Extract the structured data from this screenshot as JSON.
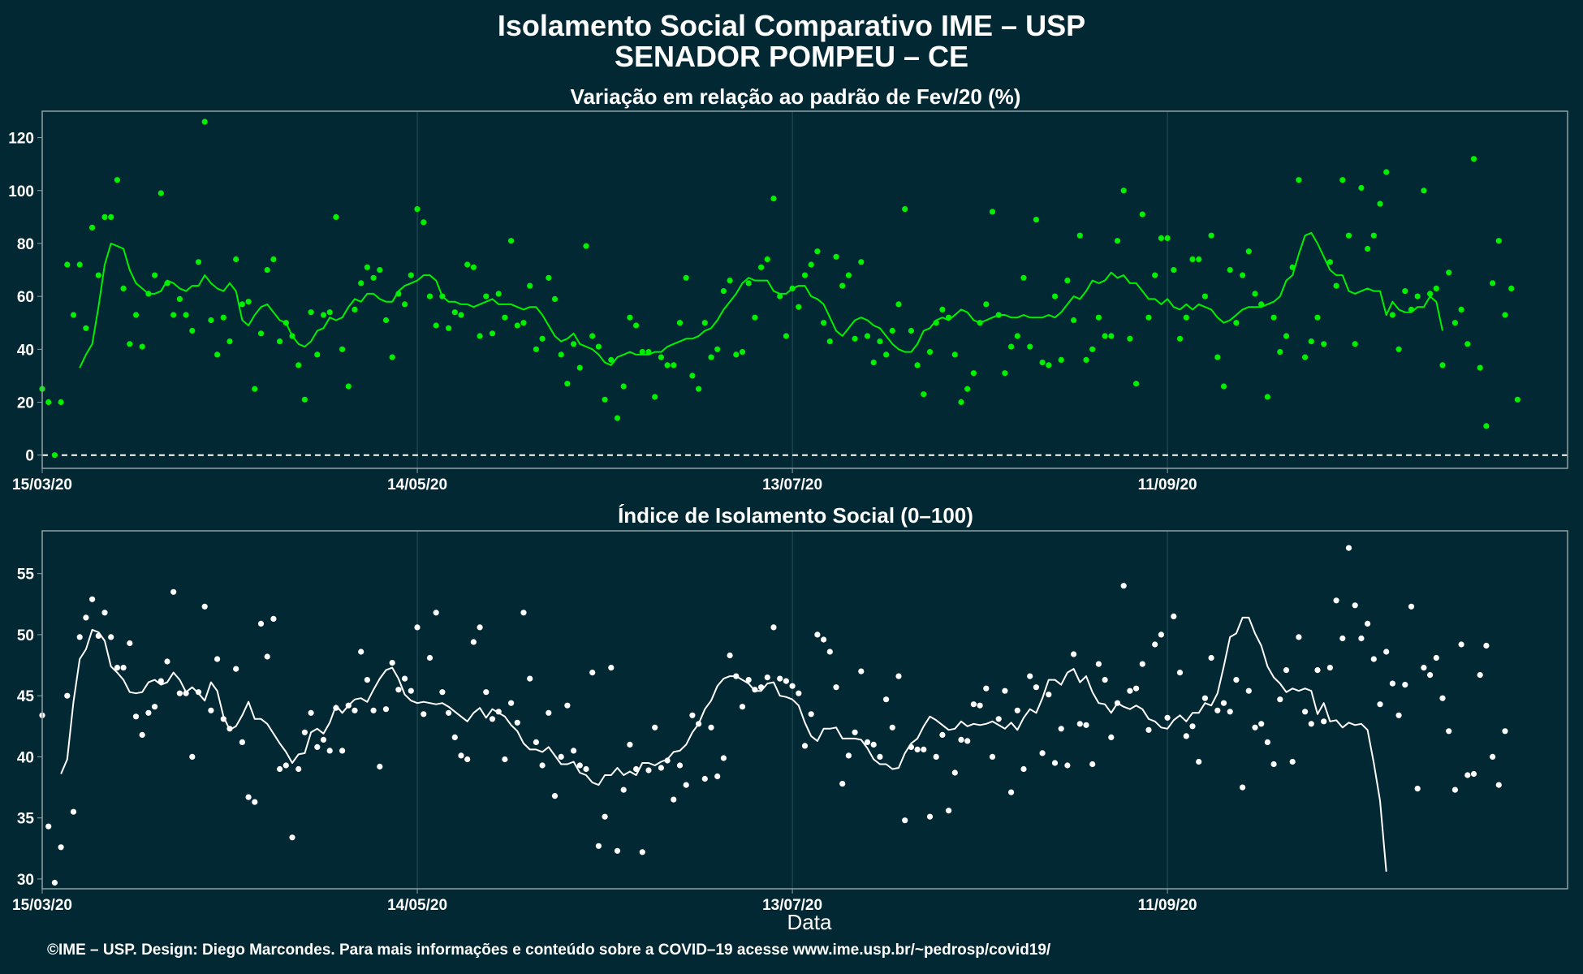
{
  "title": "Isolamento Social Comparativo IME – USP",
  "subtitle": "SENADOR POMPEU – CE",
  "xlabel": "Data",
  "footer": "©IME – USP. Design: Diego Marcondes. Para mais informações e conteúdo sobre a COVID–19 acesse www.ime.usp.br/~pedrosp/covid19/",
  "colors": {
    "background": "#022833",
    "panel_border": "#8ea1a6",
    "grid": "#1f4a55",
    "variation": "#00f000",
    "index": "#ffffff"
  },
  "chart_data": [
    {
      "type": "scatter",
      "title": "Variação em relação ao padrão de Fev/20 (%)",
      "xaxis": {
        "start": "2020-03-15",
        "end": "2020-11-14",
        "ticks": [
          "15/03/20",
          "14/05/20",
          "13/07/20",
          "11/09/20"
        ]
      },
      "ylim": [
        -5,
        130
      ],
      "yticks": [
        0,
        20,
        40,
        60,
        80,
        100,
        120
      ],
      "reference_line": 0,
      "series": [
        {
          "type": "scatter",
          "values": [
            25,
            20,
            0,
            20,
            72,
            53,
            72,
            48,
            86,
            68,
            90,
            90,
            104,
            63,
            42,
            53,
            41,
            61,
            68,
            99,
            65,
            53,
            59,
            53,
            47,
            73,
            126,
            51,
            38,
            52,
            43,
            74,
            57,
            58,
            25,
            46,
            70,
            74,
            43,
            50,
            45,
            34,
            21,
            54,
            38,
            53,
            54,
            90,
            40,
            26,
            55,
            65,
            71,
            67,
            70,
            51,
            37,
            61,
            57,
            68,
            93,
            88,
            60,
            49,
            60,
            48,
            54,
            53,
            72,
            71,
            45,
            60,
            46,
            61,
            52,
            81,
            49,
            50,
            64,
            40,
            44,
            67,
            59,
            38,
            27,
            42,
            33,
            79,
            45,
            41,
            21,
            36,
            14,
            26,
            52,
            49,
            39,
            39,
            22,
            37,
            34,
            34,
            50,
            67,
            30,
            25,
            50,
            37,
            40,
            62,
            66,
            38,
            39,
            65,
            52,
            71,
            74,
            97,
            60,
            45,
            63,
            56,
            68,
            72,
            77,
            50,
            43,
            75,
            64,
            68,
            44,
            73,
            45,
            35,
            43,
            38,
            47,
            57,
            93,
            47,
            34,
            23,
            39,
            50,
            55,
            52,
            38,
            20,
            25,
            31,
            50,
            57,
            92,
            53,
            31,
            41,
            45,
            67,
            41,
            89,
            35,
            34,
            60,
            36,
            66,
            51,
            83,
            36,
            40,
            52,
            45,
            45,
            81,
            100,
            44,
            27,
            91,
            52,
            68,
            82,
            82,
            70,
            44,
            52,
            74,
            74,
            60,
            83,
            37,
            26,
            70,
            50,
            68,
            77,
            61,
            57,
            22,
            52,
            39,
            45,
            71,
            104,
            37,
            43,
            52,
            42,
            73,
            64,
            104,
            83,
            42,
            101,
            78,
            83,
            95,
            107,
            53,
            40,
            62,
            55,
            60,
            100,
            61,
            63,
            34,
            69,
            50,
            55,
            42,
            112,
            33,
            11,
            65,
            81,
            53,
            63,
            21
          ]
        },
        {
          "type": "line",
          "values": [
            null,
            null,
            null,
            null,
            null,
            null,
            33,
            38,
            42,
            56,
            72,
            80,
            79,
            78,
            70,
            65,
            63,
            61,
            61,
            62,
            66,
            65,
            63,
            62,
            64,
            64,
            68,
            65,
            63,
            62,
            65,
            62,
            51,
            49,
            53,
            56,
            57,
            54,
            51,
            50,
            45,
            42,
            41,
            43,
            47,
            48,
            52,
            51,
            52,
            56,
            59,
            58,
            61,
            61,
            59,
            58,
            58,
            62,
            64,
            65,
            66,
            68,
            68,
            66,
            60,
            58,
            58,
            57,
            57,
            56,
            57,
            58,
            59,
            57,
            57,
            57,
            56,
            55,
            56,
            56,
            53,
            49,
            45,
            43,
            44,
            46,
            42,
            41,
            40,
            38,
            35,
            34,
            37,
            38,
            39,
            38,
            38,
            38,
            39,
            39,
            41,
            42,
            43,
            44,
            44,
            45,
            47,
            48,
            51,
            55,
            58,
            61,
            65,
            67,
            66,
            66,
            66,
            62,
            61,
            61,
            63,
            64,
            64,
            60,
            59,
            57,
            52,
            47,
            45,
            48,
            51,
            52,
            51,
            49,
            48,
            45,
            42,
            40,
            39,
            39,
            42,
            47,
            48,
            51,
            52,
            51,
            53,
            55,
            54,
            51,
            50,
            51,
            52,
            53,
            53,
            52,
            52,
            53,
            52,
            52,
            52,
            53,
            52,
            54,
            57,
            60,
            59,
            62,
            66,
            65,
            66,
            69,
            67,
            68,
            65,
            65,
            62,
            59,
            59,
            57,
            59,
            56,
            55,
            57,
            55,
            57,
            56,
            55,
            52,
            50,
            51,
            53,
            55,
            56,
            56,
            56,
            57,
            58,
            60,
            66,
            68,
            76,
            83,
            84,
            80,
            75,
            70,
            68,
            68,
            62,
            61,
            62,
            63,
            62,
            62,
            53,
            58,
            55,
            54,
            54,
            56,
            56,
            60,
            58,
            47
          ]
        }
      ]
    },
    {
      "type": "scatter",
      "title": "Índice de Isolamento Social (0–100)",
      "xaxis": {
        "start": "2020-03-15",
        "end": "2020-11-14",
        "ticks": [
          "15/03/20",
          "14/05/20",
          "13/07/20",
          "11/09/20"
        ]
      },
      "ylim": [
        29.2,
        58.5
      ],
      "yticks": [
        30,
        35,
        40,
        45,
        50,
        55
      ],
      "series": [
        {
          "type": "scatter",
          "values": [
            43.4,
            34.3,
            29.7,
            32.6,
            45,
            35.5,
            49.8,
            51.4,
            52.9,
            49.9,
            51.8,
            49.8,
            47.3,
            47.3,
            49.3,
            43.3,
            41.8,
            43.6,
            44.1,
            46.2,
            47.8,
            53.5,
            45.2,
            45.2,
            40,
            45.3,
            52.3,
            43.8,
            48,
            43.1,
            42.3,
            47.2,
            41.2,
            36.7,
            36.3,
            50.9,
            48.2,
            51.3,
            39,
            39.3,
            33.4,
            39,
            42,
            43.6,
            40.8,
            41.4,
            40.5,
            44,
            40.5,
            44.2,
            43.8,
            48.6,
            46.3,
            43.8,
            39.2,
            43.9,
            47.7,
            45.5,
            46.4,
            45.4,
            50.6,
            43.5,
            48.1,
            51.8,
            45.3,
            43.6,
            41.6,
            40.1,
            39.8,
            49.4,
            50.6,
            45.3,
            43.1,
            43.7,
            39.8,
            44.4,
            42.8,
            51.8,
            46.4,
            41.2,
            39.3,
            43.6,
            36.8,
            40,
            44.2,
            40.5,
            39.3,
            39,
            46.9,
            32.7,
            35.1,
            47.3,
            32.3,
            37.3,
            41,
            39,
            32.2,
            38.9,
            42.4,
            39.1,
            39.7,
            36.5,
            39.3,
            37.7,
            43.4,
            42.7,
            38.2,
            42.4,
            38.4,
            39.9,
            48.3,
            46.6,
            44.1,
            46.3,
            45.5,
            45.7,
            46.5,
            50.6,
            46.4,
            46.2,
            45.8,
            45.2,
            40.9,
            43.5,
            50,
            49.6,
            48.6,
            45.7,
            37.8,
            40.1,
            42,
            47,
            41.2,
            41,
            40,
            44.7,
            42.4,
            46.6,
            34.8,
            40.8,
            40.6,
            40.6,
            35.1,
            40,
            41.8,
            35.6,
            38.7,
            41.4,
            41.3,
            44.3,
            44.2,
            45.6,
            40,
            43.1,
            45.4,
            37.1,
            43.8,
            39,
            46.6,
            45.7,
            40.3,
            45.1,
            39.5,
            42.3,
            39.3,
            48.4,
            42.7,
            42.6,
            39.4,
            47.6,
            46.3,
            41.6,
            44.4,
            54,
            45.4,
            45.6,
            47.6,
            42.2,
            49.2,
            50,
            43.2,
            51.5,
            46.9,
            41.7,
            42.5,
            39.6,
            44.8,
            48.1,
            43.8,
            44.4,
            43.7,
            46.3,
            37.5,
            45.4,
            42.4,
            42.7,
            41.2,
            39.4,
            44.7,
            47.1,
            39.6,
            49.8,
            43.7,
            42.7,
            47.1,
            42.9,
            47.3,
            52.8,
            49.7,
            57.1,
            52.4,
            49.7,
            50.9,
            48,
            44.3,
            48.6,
            46,
            43.4,
            45.9,
            52.3,
            37.4,
            47.3,
            46.7,
            48.1,
            44.8,
            42.1,
            37.3,
            49.2,
            38.5,
            38.6,
            46.7,
            49.1,
            40,
            37.7,
            42.1
          ]
        },
        {
          "type": "line",
          "values": [
            null,
            null,
            null,
            38.6,
            39.8,
            44.5,
            48,
            48.8,
            50.4,
            50.2,
            49.5,
            47.4,
            46.9,
            46.3,
            45.3,
            45.2,
            45.3,
            46.1,
            46.3,
            45.9,
            46.1,
            46.9,
            46.3,
            45.3,
            45.7,
            45.2,
            44.6,
            46.1,
            45.4,
            43.3,
            42.2,
            42.5,
            43.4,
            44.5,
            43.1,
            43.1,
            42.7,
            41.9,
            41.1,
            40.4,
            39.5,
            40.2,
            40.3,
            42,
            42.3,
            41.9,
            42.8,
            44.2,
            43.6,
            44.2,
            44.7,
            44.8,
            44.5,
            45.5,
            46.4,
            47.1,
            47.3,
            46.4,
            45.1,
            44.6,
            44.4,
            44.5,
            44.4,
            44.3,
            44.4,
            44.1,
            43.7,
            43.3,
            42.9,
            43.6,
            44,
            43.2,
            43.9,
            43.6,
            43.3,
            42.6,
            42.1,
            41.1,
            40.6,
            40.6,
            40.4,
            40.8,
            40.1,
            39.4,
            39.4,
            39.6,
            38.7,
            38.5,
            37.9,
            37.7,
            38.5,
            38.5,
            39.1,
            38.5,
            38.8,
            38.5,
            39.5,
            39.5,
            39.3,
            39.6,
            39.8,
            40.4,
            40.5,
            41,
            42,
            42.7,
            43.9,
            44.6,
            45.8,
            46.4,
            46.6,
            46.6,
            46.3,
            46,
            45.4,
            45.4,
            46,
            46.1,
            45,
            44.9,
            44.7,
            44.2,
            42.8,
            41.7,
            41.3,
            42.3,
            42.3,
            42.4,
            41.5,
            41.5,
            41.5,
            41.4,
            40.7,
            39.8,
            39.4,
            39.4,
            39,
            39.1,
            40.3,
            41.1,
            41.5,
            42.5,
            43.3,
            43,
            42.6,
            42.2,
            42.3,
            42.9,
            42.5,
            42.7,
            42.6,
            42.7,
            42.9,
            42.6,
            42.3,
            42.8,
            42.2,
            43.2,
            43.9,
            43.6,
            44.8,
            46.3,
            46.3,
            45.9,
            46.9,
            47.2,
            46.1,
            46.6,
            45.3,
            44.4,
            44.3,
            43.6,
            44.4,
            44.1,
            43.9,
            44.2,
            43.9,
            43.1,
            42.9,
            42.4,
            42.3,
            43,
            43.4,
            42.9,
            43.6,
            43.6,
            44.4,
            44.2,
            45.2,
            47.4,
            49.8,
            50.1,
            51.4,
            51.4,
            50.1,
            49.1,
            47.4,
            46.5,
            46,
            45.3,
            45.6,
            45.4,
            45.6,
            45.4,
            43.5,
            44.4,
            42.9,
            43,
            42.4,
            42.8,
            42.6,
            42.7,
            42.2,
            39.5,
            36.4,
            30.6
          ]
        }
      ]
    }
  ]
}
